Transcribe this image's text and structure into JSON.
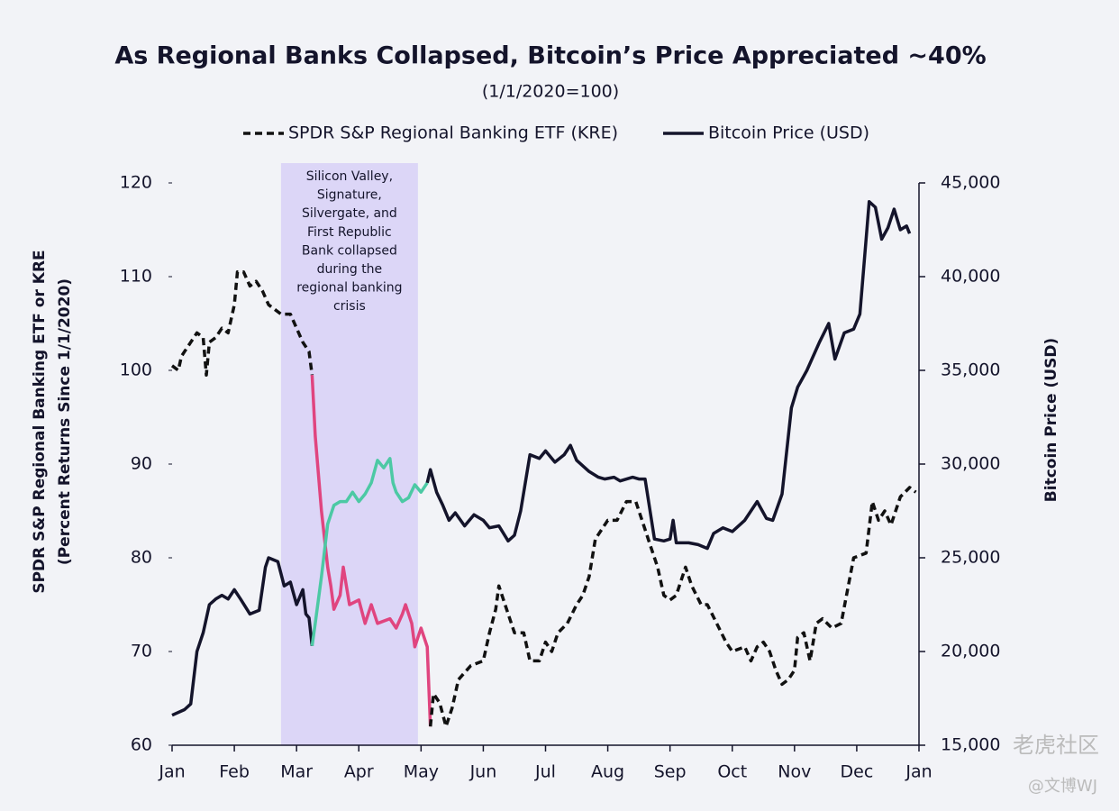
{
  "chart_data": {
    "type": "line",
    "title": "As Regional Banks Collapsed, Bitcoin’s Price Appreciated ~40%",
    "subtitle": "(1/1/2020=100)",
    "y_label": [
      "SPDR S&P Regional Banking ETF or KRE",
      "(Percent Returns Since 1/1/2020)"
    ],
    "y2_label": "Bitcoin Price (USD)",
    "legend": "top",
    "grid": false,
    "xlim": [
      0,
      12
    ],
    "xticks": [
      {
        "value": 0,
        "label": "Jan"
      },
      {
        "value": 1,
        "label": "Feb"
      },
      {
        "value": 2,
        "label": "Mar"
      },
      {
        "value": 3,
        "label": "Apr"
      },
      {
        "value": 4,
        "label": "May"
      },
      {
        "value": 5,
        "label": "Jun"
      },
      {
        "value": 6,
        "label": "Jul"
      },
      {
        "value": 7,
        "label": "Aug"
      },
      {
        "value": 8,
        "label": "Sep"
      },
      {
        "value": 9,
        "label": "Oct"
      },
      {
        "value": 10,
        "label": "Nov"
      },
      {
        "value": 11,
        "label": "Dec"
      },
      {
        "value": 12,
        "label": "Jan"
      }
    ],
    "ylim": [
      60,
      120
    ],
    "yticks": [
      60,
      70,
      80,
      90,
      100,
      110,
      120
    ],
    "y2lim": [
      15000,
      45000
    ],
    "y2ticks": [
      {
        "value": 15000,
        "label": "15,000"
      },
      {
        "value": 20000,
        "label": "20,000"
      },
      {
        "value": 25000,
        "label": "25,000"
      },
      {
        "value": 30000,
        "label": "30,000"
      },
      {
        "value": 35000,
        "label": "35,000"
      },
      {
        "value": 40000,
        "label": "40,000"
      },
      {
        "value": 45000,
        "label": "45,000"
      }
    ],
    "shaded_region": {
      "x": [
        1.75,
        3.95
      ],
      "color": "#dcd6f7",
      "lines": [
        "Silicon Valley,",
        "Signature,",
        "Silvergate, and",
        "First Republic",
        "Bank collapsed",
        "during the",
        "regional banking",
        "crisis"
      ]
    },
    "series": [
      {
        "name": "SPDR S&P Regional Banking ETF (KRE)",
        "color": "#111111",
        "dashed": true,
        "highlight_color": "#e0457f",
        "highlight_x": [
          2.25,
          4.15
        ],
        "x": [
          0,
          0.1,
          0.15,
          0.2,
          0.3,
          0.4,
          0.5,
          0.55,
          0.6,
          0.7,
          0.8,
          0.9,
          1.0,
          1.05,
          1.15,
          1.25,
          1.35,
          1.45,
          1.55,
          1.65,
          1.75,
          1.9,
          2.0,
          2.1,
          2.2,
          2.25,
          2.3,
          2.4,
          2.5,
          2.55,
          2.6,
          2.7,
          2.75,
          2.85,
          3.0,
          3.1,
          3.2,
          3.3,
          3.5,
          3.6,
          3.7,
          3.75,
          3.85,
          3.9,
          4.0,
          4.1,
          4.15,
          4.2,
          4.3,
          4.4,
          4.5,
          4.6,
          4.8,
          5.0,
          5.1,
          5.2,
          5.25,
          5.35,
          5.5,
          5.65,
          5.75,
          5.9,
          6.0,
          6.1,
          6.2,
          6.35,
          6.5,
          6.6,
          6.7,
          6.8,
          7.0,
          7.15,
          7.3,
          7.45,
          7.55,
          7.7,
          7.8,
          7.9,
          8.0,
          8.1,
          8.25,
          8.35,
          8.5,
          8.6,
          8.75,
          8.9,
          9.0,
          9.2,
          9.3,
          9.4,
          9.5,
          9.6,
          9.7,
          9.8,
          9.9,
          10.0,
          10.05,
          10.15,
          10.25,
          10.35,
          10.45,
          10.6,
          10.75,
          10.95,
          11.15,
          11.25,
          11.35,
          11.45,
          11.55,
          11.7,
          11.85,
          11.95
        ],
        "values": [
          100.5,
          100,
          101.5,
          102,
          103,
          104,
          103.5,
          99.5,
          103,
          103.5,
          104.5,
          104,
          107,
          110.5,
          110.5,
          109,
          109.5,
          108.5,
          107,
          106.5,
          106,
          106,
          104.5,
          103,
          102,
          99.5,
          93,
          85,
          79,
          77,
          74.5,
          76,
          79,
          75,
          75.5,
          73,
          75,
          73,
          73.5,
          72.5,
          74,
          75,
          73,
          70.5,
          72.5,
          70.5,
          62,
          65.5,
          64.5,
          62,
          64,
          67,
          68.5,
          69,
          72,
          74.5,
          77,
          75,
          72,
          72,
          69,
          69,
          71,
          70,
          72,
          73,
          75,
          76,
          78,
          82,
          84,
          84,
          86,
          86,
          84,
          81,
          79,
          76,
          75.5,
          76,
          79,
          77,
          75,
          75,
          73,
          71,
          70,
          70.5,
          69,
          70.5,
          71,
          70,
          68,
          66.5,
          67,
          68,
          71.5,
          72,
          69,
          73,
          73.5,
          72.5,
          73,
          80,
          80.5,
          86,
          84,
          85,
          83.5,
          86.5,
          87.5,
          87
        ]
      },
      {
        "name": "Bitcoin Price (USD)",
        "color": "#14142b",
        "dashed": false,
        "axis": "y2",
        "highlight_color": "#4cc9a4",
        "highlight_x": [
          2.25,
          4.1
        ],
        "x": [
          0,
          0.2,
          0.3,
          0.4,
          0.5,
          0.6,
          0.7,
          0.8,
          0.9,
          1.0,
          1.1,
          1.25,
          1.4,
          1.5,
          1.55,
          1.7,
          1.8,
          1.9,
          2.0,
          2.1,
          2.15,
          2.2,
          2.25,
          2.3,
          2.4,
          2.5,
          2.6,
          2.7,
          2.8,
          2.9,
          3.0,
          3.1,
          3.2,
          3.3,
          3.4,
          3.5,
          3.55,
          3.6,
          3.7,
          3.8,
          3.9,
          4.0,
          4.1,
          4.15,
          4.25,
          4.35,
          4.45,
          4.55,
          4.7,
          4.85,
          5.0,
          5.1,
          5.25,
          5.4,
          5.5,
          5.6,
          5.75,
          5.9,
          6.0,
          6.15,
          6.3,
          6.4,
          6.5,
          6.7,
          6.85,
          6.95,
          7.1,
          7.2,
          7.4,
          7.5,
          7.6,
          7.75,
          7.9,
          8.0,
          8.05,
          8.1,
          8.3,
          8.45,
          8.6,
          8.7,
          8.85,
          9.0,
          9.2,
          9.4,
          9.55,
          9.65,
          9.8,
          9.95,
          10.05,
          10.2,
          10.4,
          10.55,
          10.65,
          10.8,
          10.95,
          11.05,
          11.15,
          11.2,
          11.3,
          11.4,
          11.5,
          11.6,
          11.7,
          11.8,
          11.85
        ],
        "values": [
          16600,
          16900,
          17200,
          20000,
          21000,
          22500,
          22800,
          23000,
          22800,
          23300,
          22800,
          22000,
          22200,
          24500,
          25000,
          24800,
          23500,
          23700,
          22500,
          23300,
          22000,
          21800,
          20300,
          21500,
          24000,
          26800,
          27800,
          28000,
          28000,
          28500,
          28000,
          28400,
          29000,
          30200,
          29800,
          30300,
          29000,
          28500,
          28000,
          28200,
          28900,
          28500,
          29000,
          29700,
          28500,
          27800,
          27000,
          27400,
          26700,
          27300,
          27000,
          26600,
          26700,
          25900,
          26200,
          27500,
          30500,
          30300,
          30700,
          30100,
          30500,
          31000,
          30200,
          29600,
          29300,
          29200,
          29300,
          29100,
          29300,
          29200,
          29200,
          26000,
          25900,
          26000,
          27000,
          25800,
          25800,
          25700,
          25500,
          26300,
          26600,
          26400,
          27000,
          28000,
          27100,
          27000,
          28400,
          33000,
          34100,
          35000,
          36500,
          37500,
          35600,
          37000,
          37200,
          38000,
          42000,
          44000,
          43700,
          42000,
          42600,
          43600,
          42500,
          42700,
          42300
        ]
      }
    ],
    "watermark": [
      "老虎社区",
      "@文博WJ"
    ]
  }
}
